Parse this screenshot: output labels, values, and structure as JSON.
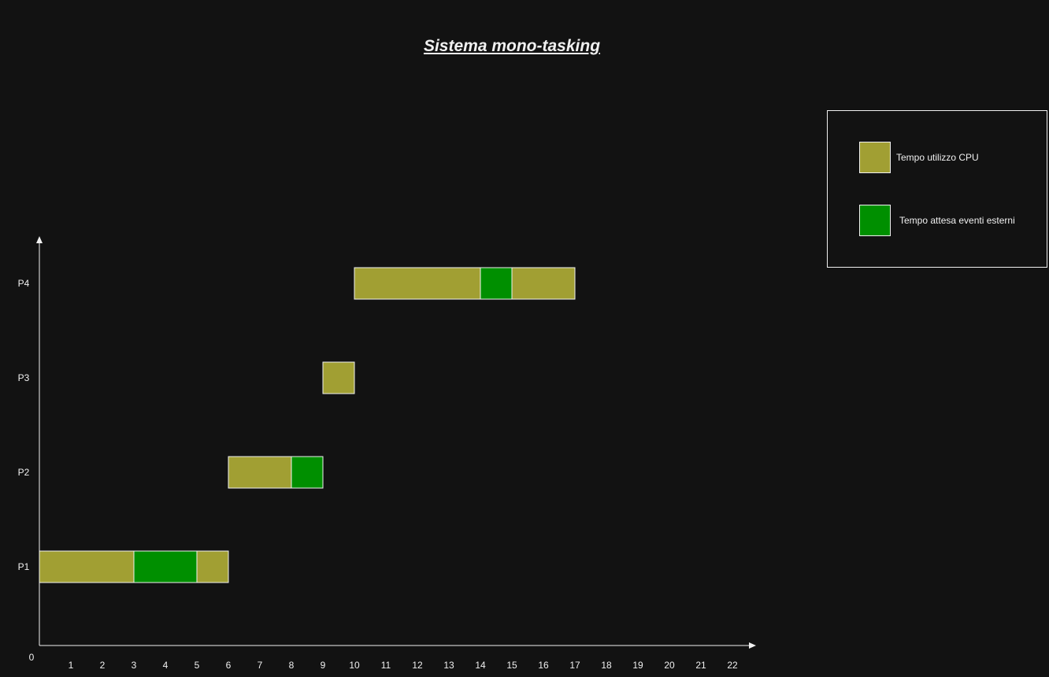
{
  "chart_data": {
    "type": "gantt",
    "title": "Sistema mono-tasking",
    "x_ticks": [
      "0",
      "1",
      "2",
      "3",
      "4",
      "5",
      "6",
      "7",
      "8",
      "9",
      "10",
      "11",
      "12",
      "13",
      "14",
      "15",
      "16",
      "17",
      "18",
      "19",
      "20",
      "21",
      "22"
    ],
    "xlim": [
      0,
      22
    ],
    "categories": [
      "P1",
      "P2",
      "P3",
      "P4"
    ],
    "segments": [
      {
        "process": "P1",
        "start": 0,
        "end": 3,
        "kind": "cpu"
      },
      {
        "process": "P1",
        "start": 3,
        "end": 5,
        "kind": "wait"
      },
      {
        "process": "P1",
        "start": 5,
        "end": 6,
        "kind": "cpu"
      },
      {
        "process": "P2",
        "start": 6,
        "end": 8,
        "kind": "cpu"
      },
      {
        "process": "P2",
        "start": 8,
        "end": 9,
        "kind": "wait"
      },
      {
        "process": "P3",
        "start": 9,
        "end": 10,
        "kind": "cpu"
      },
      {
        "process": "P4",
        "start": 10,
        "end": 14,
        "kind": "cpu"
      },
      {
        "process": "P4",
        "start": 14,
        "end": 15,
        "kind": "wait"
      },
      {
        "process": "P4",
        "start": 15,
        "end": 17,
        "kind": "cpu"
      }
    ],
    "legend": {
      "position": "top-right",
      "items": [
        {
          "kind": "cpu",
          "label": "Tempo utilizzo CPU",
          "color": "#a19f33"
        },
        {
          "kind": "wait",
          "label": "Tempo attesa eventi esterni",
          "color": "#008f00"
        }
      ]
    },
    "colors": {
      "background": "#121212",
      "axis": "#f0f0f0",
      "cpu": "#a19f33",
      "wait": "#008f00",
      "border": "#f0f0f0"
    }
  }
}
